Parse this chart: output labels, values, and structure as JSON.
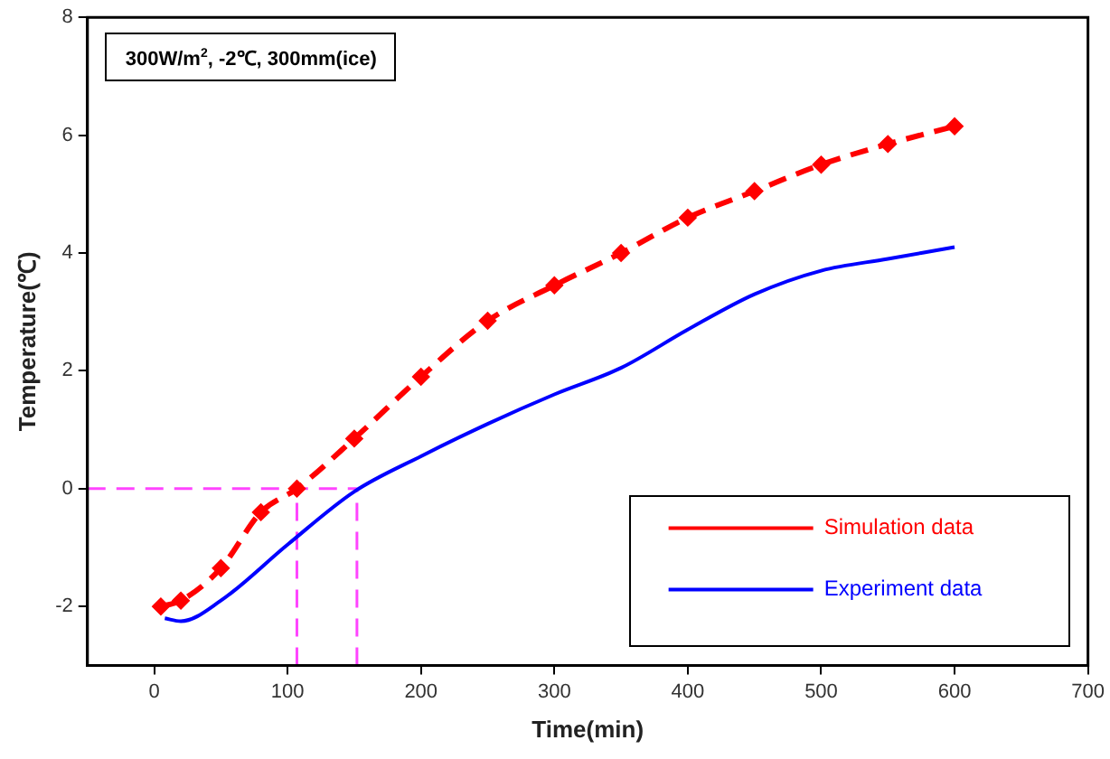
{
  "chart_data": {
    "type": "line",
    "xlabel": "Time(min)",
    "ylabel": "Temperature(℃)",
    "annotations": [
      "300W/m$^{2}$, -2℃, 300mm(ice)"
    ],
    "xlim": [
      -50,
      700
    ],
    "xticks": [
      0,
      100,
      200,
      300,
      400,
      500,
      600,
      700
    ],
    "ylim": [
      -3,
      8
    ],
    "yticks": [
      -2,
      0,
      2,
      4,
      6,
      8
    ],
    "grid": false,
    "legend": "bottom right",
    "series": [
      {
        "name": "Simulation data",
        "color": "#ff0000",
        "marker": "diamond",
        "line_style": "dashed",
        "x": [
          5,
          20,
          50,
          80,
          107,
          150,
          200,
          250,
          300,
          350,
          400,
          450,
          500,
          550,
          600
        ],
        "values": [
          -2,
          -1.9,
          -1.35,
          -0.4,
          0,
          0.85,
          1.9,
          2.85,
          3.45,
          4.0,
          4.6,
          5.05,
          5.5,
          5.85,
          6.15
        ]
      },
      {
        "name": "Experiment data",
        "color": "#0000ff",
        "marker": "none",
        "line_style": "solid",
        "x": [
          8,
          20,
          50,
          100,
          150,
          200,
          250,
          300,
          350,
          400,
          450,
          500,
          550,
          600
        ],
        "values": [
          -2.2,
          -2.25,
          -1.9,
          -0.95,
          -0.05,
          0.55,
          1.1,
          1.6,
          2.05,
          2.7,
          3.3,
          3.7,
          3.9,
          4.1
        ]
      }
    ],
    "ref_lines": [
      {
        "axis": "y",
        "value": 0,
        "color": "#ff44ff",
        "line_style": "dashed"
      },
      {
        "axis": "x",
        "value": 107,
        "color": "#ff44ff",
        "line_style": "dashed"
      },
      {
        "axis": "x",
        "value": 152,
        "color": "#ff44ff",
        "line_style": "dashed"
      }
    ]
  }
}
